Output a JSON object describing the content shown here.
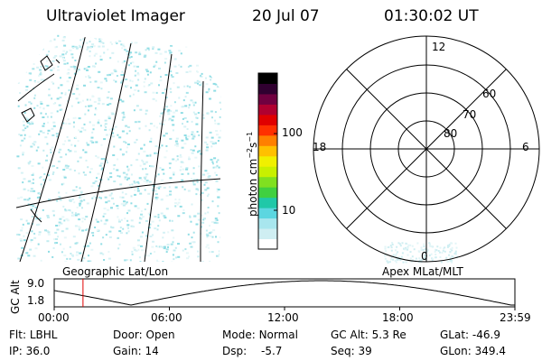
{
  "header": {
    "title": "Ultraviolet Imager",
    "date": "20 Jul 07",
    "time": "01:30:02 UT"
  },
  "colorbar": {
    "unit": "photon cm",
    "unit_exp1": "−2",
    "unit_mid": "s",
    "unit_exp2": "−1",
    "ticks": [
      "100",
      "10"
    ],
    "colors": [
      "#ffffff",
      "#cfeef2",
      "#a8e6ee",
      "#5cd6e0",
      "#20c8a8",
      "#40d040",
      "#80e020",
      "#c8f000",
      "#f0f000",
      "#ffc000",
      "#ff8000",
      "#ff3000",
      "#e00000",
      "#b00030",
      "#700040",
      "#300030",
      "#000000"
    ]
  },
  "left_panel": {
    "label": "Geographic Lat/Lon"
  },
  "right_panel": {
    "label": "Apex MLat/MLT",
    "mlt_labels": {
      "top": "12",
      "left": "18",
      "right": "6",
      "bottom": "0"
    },
    "lat_labels": [
      "60",
      "70",
      "80"
    ]
  },
  "strip": {
    "ylabel": "GC Alt",
    "yticks": [
      "9.0",
      "1.8"
    ],
    "xticks": [
      "00:00",
      "06:00",
      "12:00",
      "18:00",
      "23:59"
    ],
    "marker_time_hours": 1.5
  },
  "footer": {
    "flt_label": "Flt:",
    "flt_value": "LBHL",
    "ip_label": "IP:",
    "ip_value": "36.0",
    "door_label": "Door:",
    "door_value": "Open",
    "gain_label": "Gain:",
    "gain_value": "14",
    "mode_label": "Mode:",
    "mode_value": "Normal",
    "dsp_label": "Dsp:",
    "dsp_value": "-5.7",
    "gcalt_label": "GC Alt:",
    "gcalt_value": "5.3 Re",
    "seq_label": "Seq:",
    "seq_value": "39",
    "glat_label": "GLat:",
    "glat_value": "-46.9",
    "glon_label": "GLon:",
    "glon_value": "349.4"
  }
}
